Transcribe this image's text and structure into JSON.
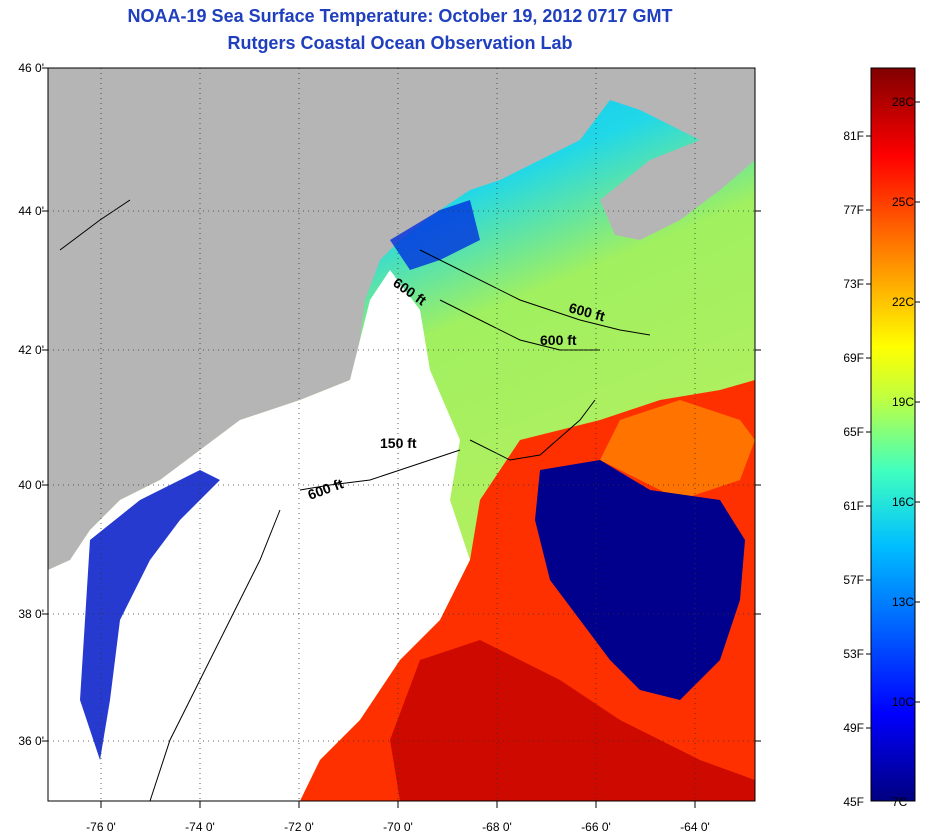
{
  "title": "NOAA-19 Sea Surface Temperature:  October 19, 2012 0717 GMT",
  "subtitle": "Rutgers Coastal Ocean Observation Lab",
  "map": {
    "lat_labels": [
      "46 0'",
      "44 0'",
      "42 0'",
      "40 0'",
      "38 0'",
      "36 0'"
    ],
    "lon_labels": [
      "-76 0'",
      "-74 0'",
      "-72 0'",
      "-70 0'",
      "-68 0'",
      "-66 0'",
      "-64 0'"
    ],
    "contour_labels": [
      "600 ft",
      "600 ft",
      "600 ft",
      "150 ft",
      "600 ft"
    ],
    "land_color": "#b5b5b5",
    "nodata_color": "#ffffff"
  },
  "colorbar": {
    "fahrenheit": [
      "81F",
      "77F",
      "73F",
      "69F",
      "65F",
      "61F",
      "57F",
      "53F",
      "49F",
      "45F"
    ],
    "celsius": [
      "28C",
      "25C",
      "22C",
      "19C",
      "16C",
      "13C",
      "10C",
      "7C"
    ],
    "colors": [
      "#800000",
      "#ff0000",
      "#ff8000",
      "#ffff00",
      "#80ff80",
      "#00ffff",
      "#0080ff",
      "#0000ff",
      "#000080"
    ]
  }
}
